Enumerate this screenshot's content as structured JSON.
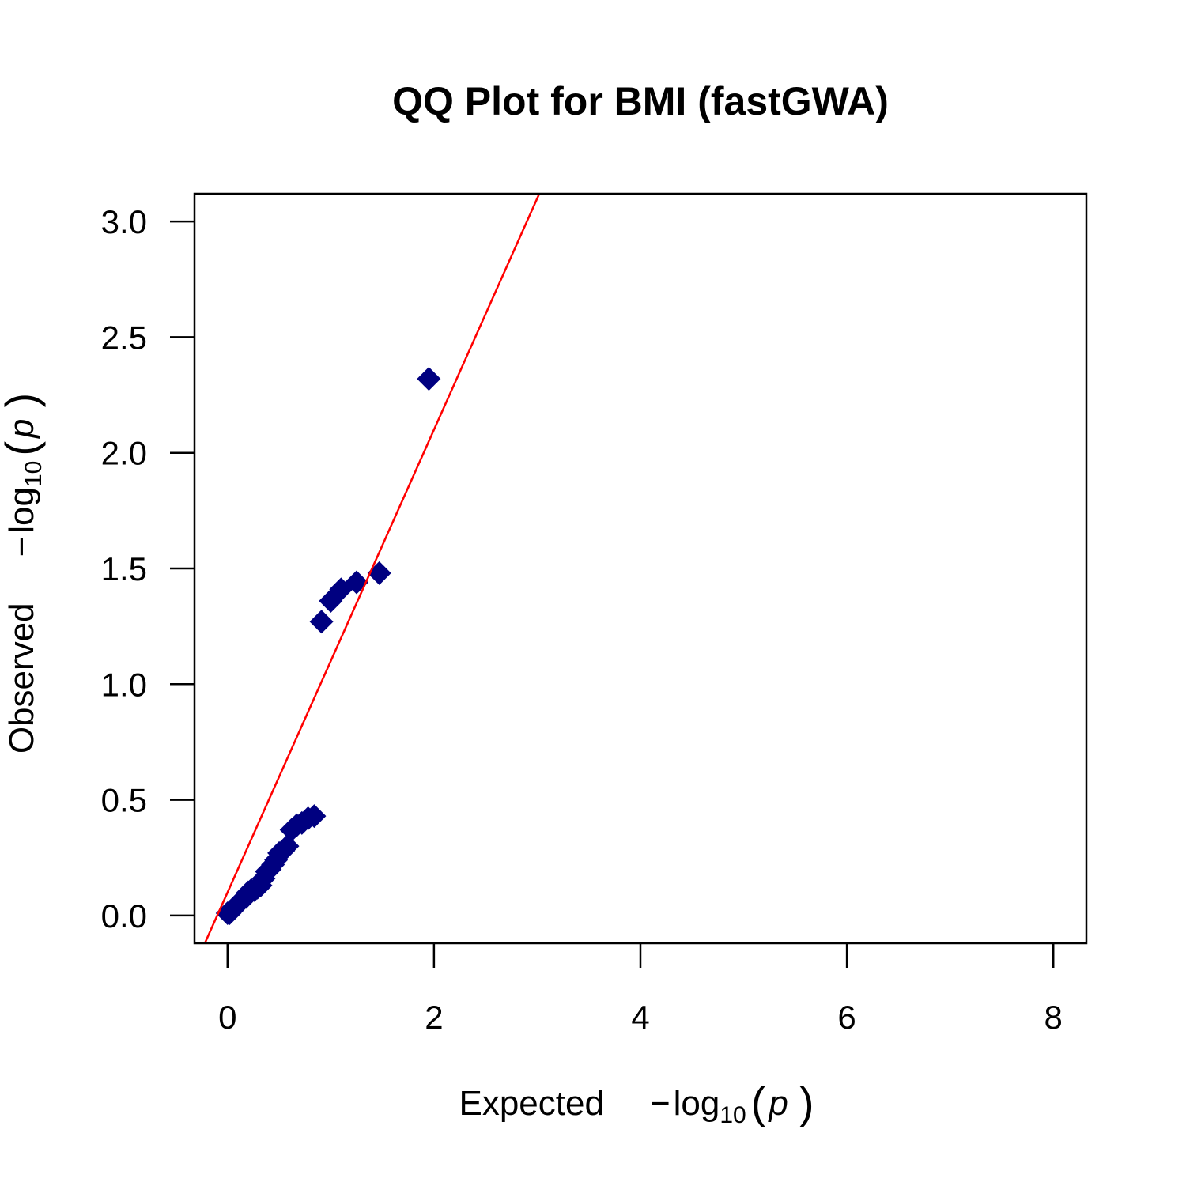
{
  "chart_data": {
    "type": "scatter",
    "title": "QQ Plot for BMI (fastGWA)",
    "xlabel": {
      "prefix": "Expected",
      "minus": "−",
      "log": "log",
      "base": "10",
      "open": "(",
      "var": "p",
      "close": ")"
    },
    "ylabel": {
      "prefix": "Observed",
      "minus": "−",
      "log": "log",
      "base": "10",
      "open": "(",
      "var": "p",
      "close": ")"
    },
    "xlim": [
      -0.32,
      8.32
    ],
    "ylim": [
      -0.12,
      3.12
    ],
    "x_ticks": [
      0,
      2,
      4,
      6,
      8
    ],
    "x_tick_labels": [
      "0",
      "2",
      "4",
      "6",
      "8"
    ],
    "y_ticks": [
      0,
      0.5,
      1,
      1.5,
      2,
      2.5,
      3
    ],
    "y_tick_labels": [
      "0.0",
      "0.5",
      "1.0",
      "1.5",
      "2.0",
      "2.5",
      "3.0"
    ],
    "grid": false,
    "marker": "diamond",
    "point_color": "#000080",
    "line_color": "#ff0000",
    "reference_line": {
      "intercept": 0.1,
      "slope": 1.0
    },
    "points": [
      {
        "x": 0.0,
        "y": 0.01
      },
      {
        "x": 0.02,
        "y": 0.01
      },
      {
        "x": 0.04,
        "y": 0.02
      },
      {
        "x": 0.06,
        "y": 0.03
      },
      {
        "x": 0.08,
        "y": 0.04
      },
      {
        "x": 0.1,
        "y": 0.05
      },
      {
        "x": 0.12,
        "y": 0.06
      },
      {
        "x": 0.15,
        "y": 0.07
      },
      {
        "x": 0.18,
        "y": 0.08
      },
      {
        "x": 0.2,
        "y": 0.1
      },
      {
        "x": 0.23,
        "y": 0.11
      },
      {
        "x": 0.26,
        "y": 0.11
      },
      {
        "x": 0.29,
        "y": 0.12
      },
      {
        "x": 0.32,
        "y": 0.13
      },
      {
        "x": 0.35,
        "y": 0.16
      },
      {
        "x": 0.38,
        "y": 0.19
      },
      {
        "x": 0.41,
        "y": 0.2
      },
      {
        "x": 0.44,
        "y": 0.22
      },
      {
        "x": 0.47,
        "y": 0.24
      },
      {
        "x": 0.5,
        "y": 0.27
      },
      {
        "x": 0.54,
        "y": 0.28
      },
      {
        "x": 0.58,
        "y": 0.3
      },
      {
        "x": 0.62,
        "y": 0.37
      },
      {
        "x": 0.67,
        "y": 0.39
      },
      {
        "x": 0.72,
        "y": 0.4
      },
      {
        "x": 0.78,
        "y": 0.42
      },
      {
        "x": 0.84,
        "y": 0.43
      },
      {
        "x": 0.91,
        "y": 1.27
      },
      {
        "x": 1.0,
        "y": 1.36
      },
      {
        "x": 1.1,
        "y": 1.41
      },
      {
        "x": 1.25,
        "y": 1.44
      },
      {
        "x": 1.47,
        "y": 1.48
      },
      {
        "x": 1.95,
        "y": 2.32
      }
    ]
  }
}
